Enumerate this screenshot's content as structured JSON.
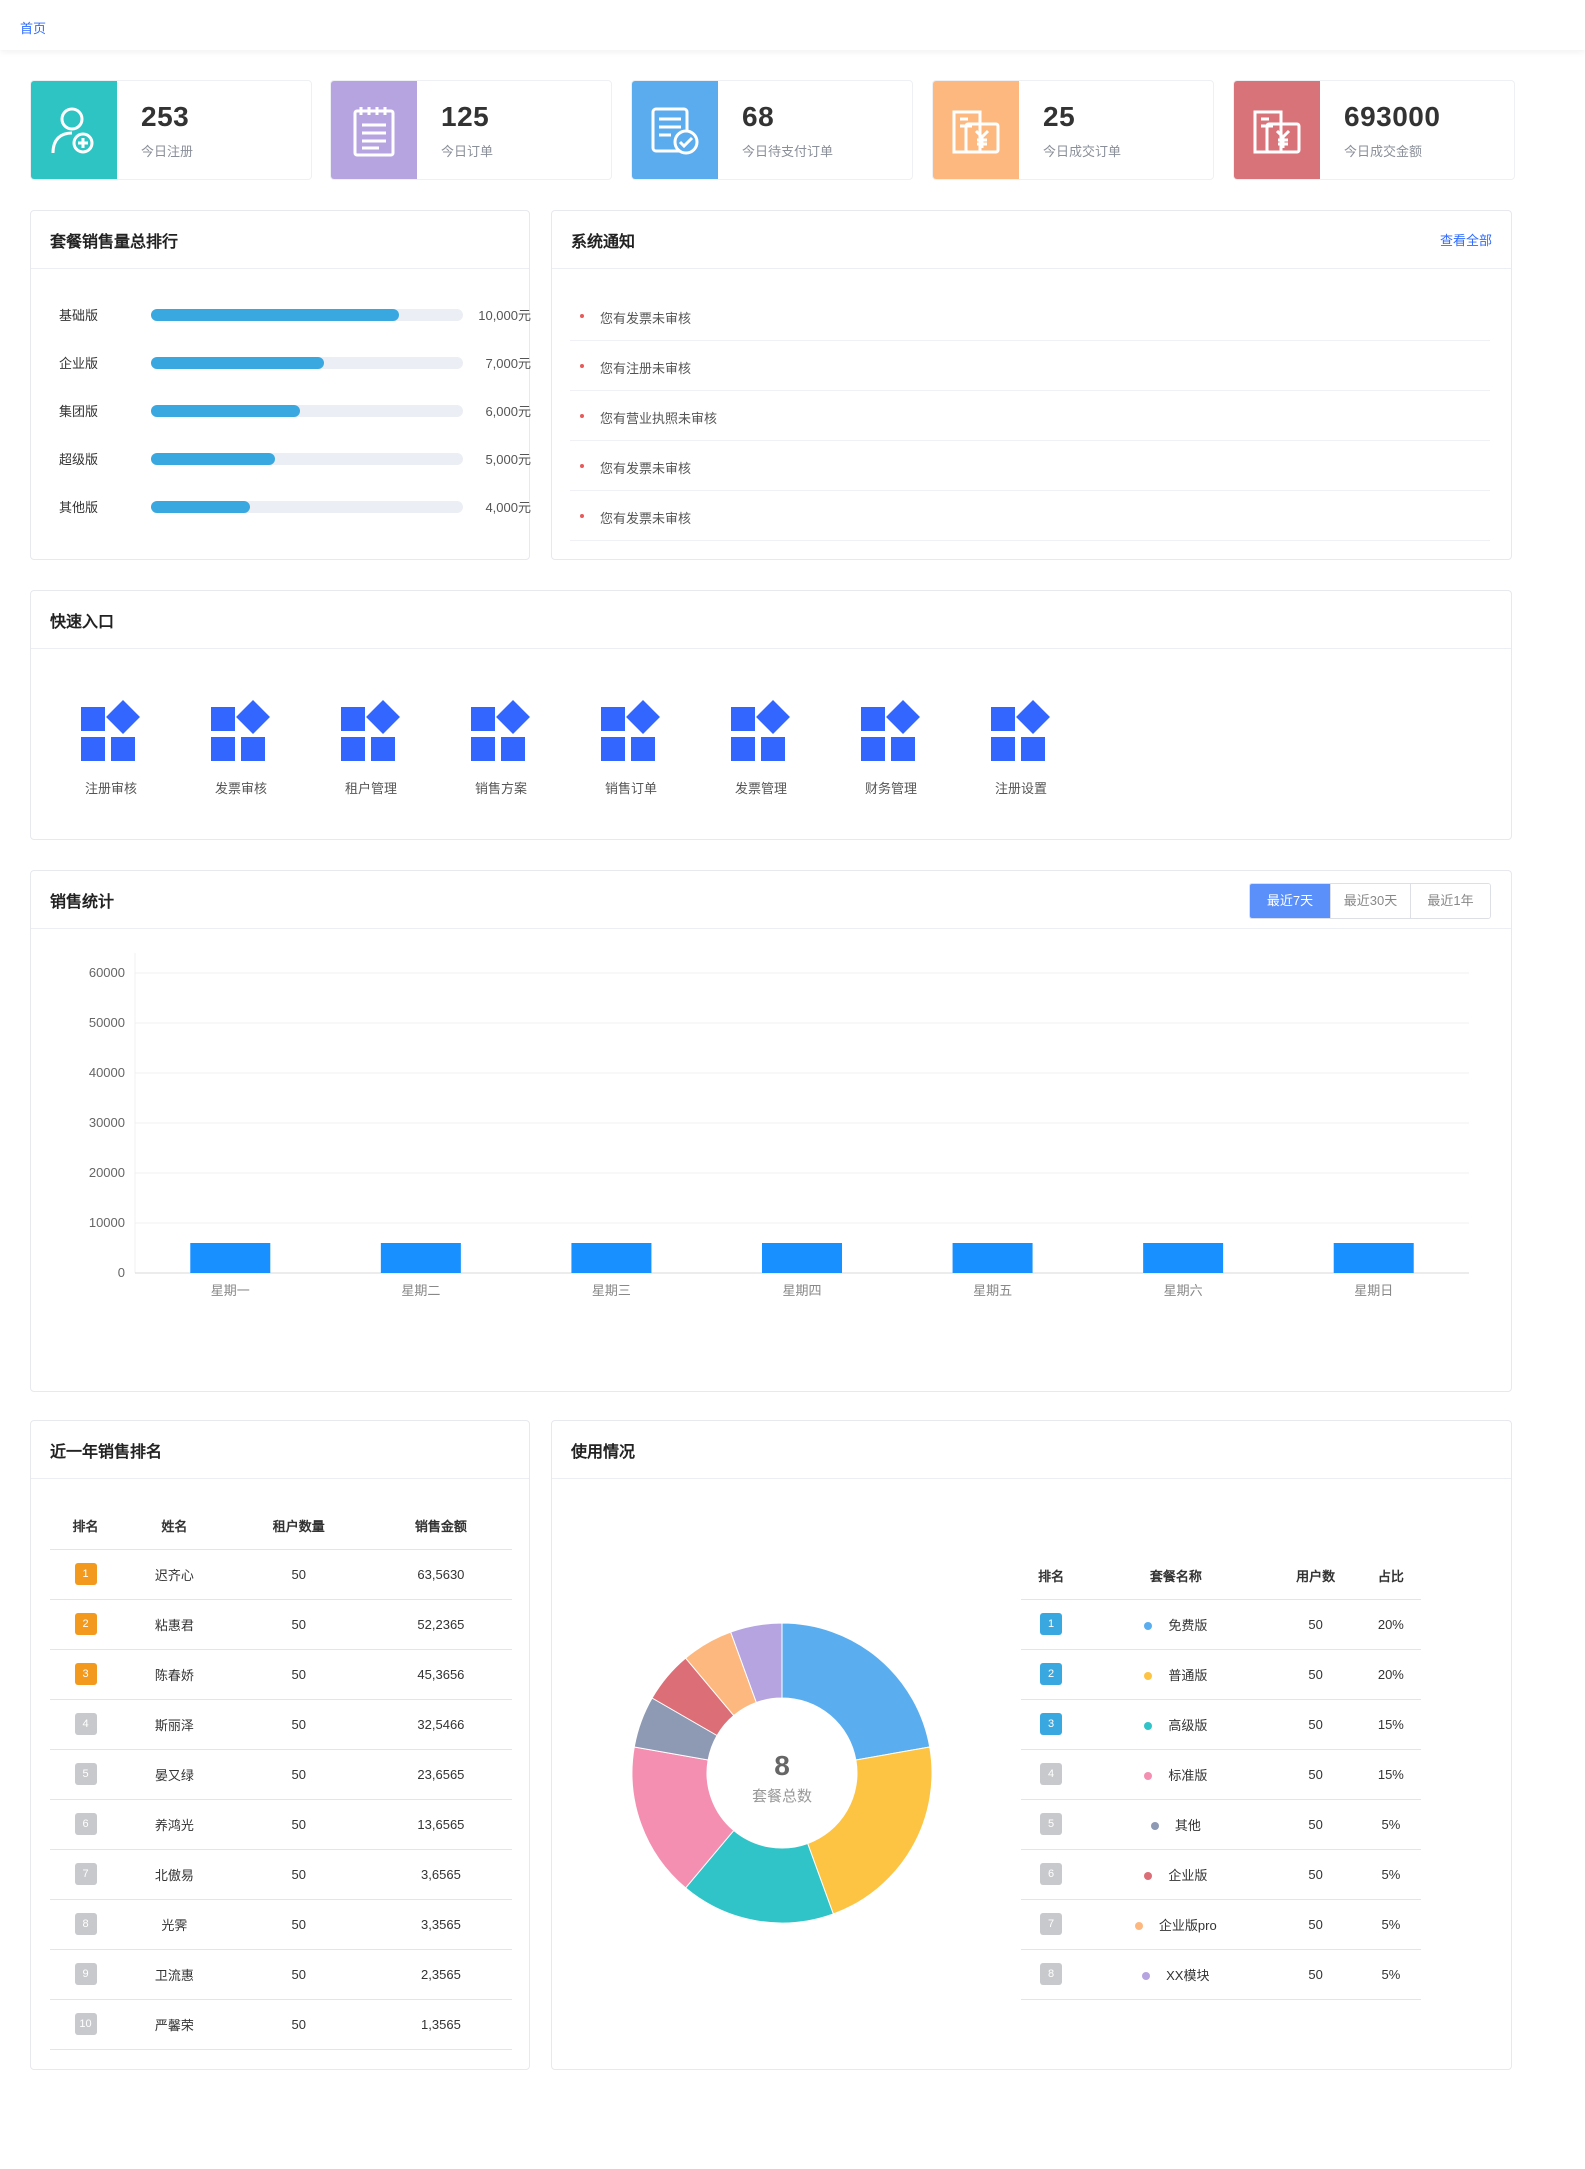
{
  "breadcrumb": {
    "home": "首页"
  },
  "stats": [
    {
      "value": "253",
      "label": "今日注册",
      "color": "#2fc4c4",
      "icon": "user-add-icon"
    },
    {
      "value": "125",
      "label": "今日订单",
      "color": "#b6a4e0",
      "icon": "notepad-icon"
    },
    {
      "value": "68",
      "label": "今日待支付订单",
      "color": "#5aacef",
      "icon": "document-check-icon"
    },
    {
      "value": "25",
      "label": "今日成交订单",
      "color": "#fdb87f",
      "icon": "invoice-yen-icon"
    },
    {
      "value": "693000",
      "label": "今日成交金额",
      "color": "#d9737a",
      "icon": "invoice-yen-icon"
    }
  ],
  "ranking": {
    "title": "套餐销售量总排行",
    "items": [
      {
        "name": "基础版",
        "value": "10,000元",
        "amount": 10000
      },
      {
        "name": "企业版",
        "value": "7,000元",
        "amount": 7000
      },
      {
        "name": "集团版",
        "value": "6,000元",
        "amount": 6000
      },
      {
        "name": "超级版",
        "value": "5,000元",
        "amount": 5000
      },
      {
        "name": "其他版",
        "value": "4,000元",
        "amount": 4000
      }
    ],
    "bar_color": "#3aa8e0"
  },
  "notices": {
    "title": "系统通知",
    "more": "查看全部",
    "items": [
      "您有发票未审核",
      "您有注册未审核",
      "您有营业执照未审核",
      "您有发票未审核",
      "您有发票未审核"
    ]
  },
  "quick": {
    "title": "快速入口",
    "items": [
      "注册审核",
      "发票审核",
      "租户管理",
      "销售方案",
      "销售订单",
      "发票管理",
      "财务管理",
      "注册设置"
    ],
    "icon": "apps-icon"
  },
  "sales": {
    "title": "销售统计",
    "tabs": [
      "最近7天",
      "最近30天",
      "最近1年"
    ],
    "active_tab": 0
  },
  "chart_data": {
    "type": "bar",
    "categories": [
      "星期一",
      "星期二",
      "星期三",
      "星期四",
      "星期五",
      "星期六",
      "星期日"
    ],
    "values": [
      6000,
      6000,
      6000,
      6000,
      6000,
      6000,
      6000
    ],
    "yticks": [
      "0",
      "10000",
      "20000",
      "30000",
      "40000",
      "50000",
      "60000"
    ],
    "ylim": [
      0,
      60000
    ],
    "color": "#1890ff",
    "grid": true
  },
  "yearRank": {
    "title": "近一年销售排名",
    "headers": [
      "排名",
      "姓名",
      "租户数量",
      "销售金额"
    ],
    "rows": [
      {
        "rank": "1",
        "name": "迟齐心",
        "count": "50",
        "amount": "63,5630"
      },
      {
        "rank": "2",
        "name": "粘惠君",
        "count": "50",
        "amount": "52,2365"
      },
      {
        "rank": "3",
        "name": "陈春娇",
        "count": "50",
        "amount": "45,3656"
      },
      {
        "rank": "4",
        "name": "斯丽泽",
        "count": "50",
        "amount": "32,5466"
      },
      {
        "rank": "5",
        "name": "晏又绿",
        "count": "50",
        "amount": "23,6565"
      },
      {
        "rank": "6",
        "name": "养鸿光",
        "count": "50",
        "amount": "13,6565"
      },
      {
        "rank": "7",
        "name": "北傲易",
        "count": "50",
        "amount": "3,6565"
      },
      {
        "rank": "8",
        "name": "光霁",
        "count": "50",
        "amount": "3,3565"
      },
      {
        "rank": "9",
        "name": "卫流惠",
        "count": "50",
        "amount": "2,3565"
      },
      {
        "rank": "10",
        "name": "严馨荣",
        "count": "50",
        "amount": "1,3565"
      }
    ]
  },
  "usage": {
    "title": "使用情况",
    "center_value": "8",
    "center_label": "套餐总数",
    "headers": [
      "排名",
      "套餐名称",
      "用户数",
      "占比"
    ],
    "rows": [
      {
        "rank": "1",
        "name": "免费版",
        "users": "50",
        "ratio": "20%",
        "color": "#5aaef0",
        "pct": 20
      },
      {
        "rank": "2",
        "name": "普通版",
        "users": "50",
        "ratio": "20%",
        "color": "#fdc443",
        "pct": 20
      },
      {
        "rank": "3",
        "name": "高级版",
        "users": "50",
        "ratio": "15%",
        "color": "#30c4c8",
        "pct": 15
      },
      {
        "rank": "4",
        "name": "标准版",
        "users": "50",
        "ratio": "15%",
        "color": "#f48fb1",
        "pct": 15
      },
      {
        "rank": "5",
        "name": "其他",
        "users": "50",
        "ratio": "5%",
        "color": "#8e9ab4",
        "pct": 5
      },
      {
        "rank": "6",
        "name": "企业版",
        "users": "50",
        "ratio": "5%",
        "color": "#db6e76",
        "pct": 5
      },
      {
        "rank": "7",
        "name": "企业版pro",
        "users": "50",
        "ratio": "5%",
        "color": "#fdb87f",
        "pct": 5
      },
      {
        "rank": "8",
        "name": "XX模块",
        "users": "50",
        "ratio": "5%",
        "color": "#b6a4e0",
        "pct": 5
      }
    ]
  }
}
